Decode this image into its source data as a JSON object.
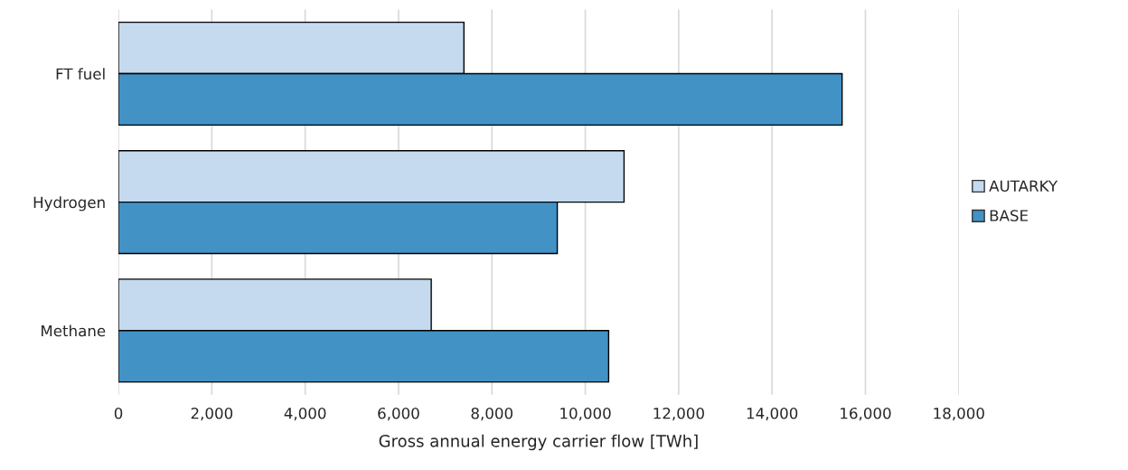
{
  "chart_data": {
    "type": "bar",
    "orientation": "horizontal",
    "xlabel": "Gross annual energy carrier flow [TWh]",
    "categories": [
      "FT fuel",
      "Hydrogen",
      "Methane"
    ],
    "series": [
      {
        "name": "AUTARKY",
        "color": "#c5daef",
        "values": [
          7400,
          10830,
          6700
        ]
      },
      {
        "name": "BASE",
        "color": "#4292c6",
        "values": [
          15500,
          9400,
          10500
        ]
      }
    ],
    "xlim": [
      0,
      18000
    ],
    "xticks": [
      {
        "value": 0,
        "label": "0"
      },
      {
        "value": 2000,
        "label": "2,000"
      },
      {
        "value": 4000,
        "label": "4,000"
      },
      {
        "value": 6000,
        "label": "6,000"
      },
      {
        "value": 8000,
        "label": "8,000"
      },
      {
        "value": 10000,
        "label": "10,000"
      },
      {
        "value": 12000,
        "label": "12,000"
      },
      {
        "value": 14000,
        "label": "14,000"
      },
      {
        "value": 16000,
        "label": "16,000"
      },
      {
        "value": 18000,
        "label": "18,000"
      }
    ],
    "grid": "x",
    "legend": "right"
  }
}
